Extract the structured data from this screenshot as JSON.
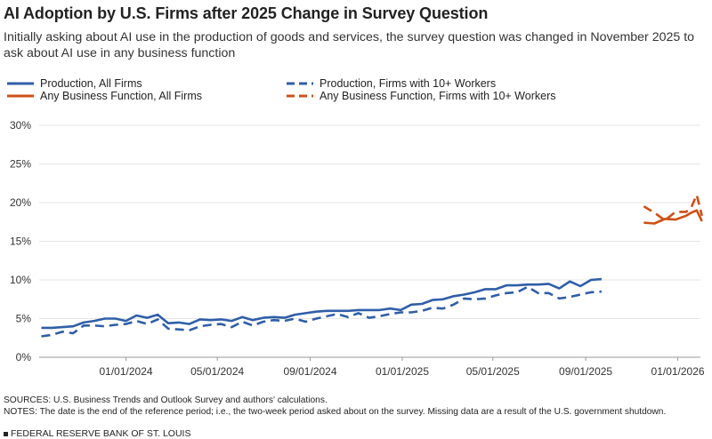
{
  "header": {
    "title": "AI Adoption by U.S. Firms after 2025 Change in Survey Question",
    "subtitle": "Initially asking about AI use in the production of goods and services, the survey question was changed in November 2025 to ask about AI use in any business function"
  },
  "legend": [
    {
      "label": "Production, All Firms",
      "color": "#2f5ea8",
      "dash": false
    },
    {
      "label": "Production, Firms with 10+ Workers",
      "color": "#2f5ea8",
      "dash": true
    },
    {
      "label": "Any Business Function, All Firms",
      "color": "#cf4f14",
      "dash": false
    },
    {
      "label": "Any Business Function, Firms with 10+ Workers",
      "color": "#cf4f14",
      "dash": true
    }
  ],
  "chart_data": {
    "type": "line",
    "title": "AI Adoption by U.S. Firms after 2025 Change in Survey Question",
    "xlabel": "",
    "ylabel": "",
    "x_ticks": [
      "01/01/2024",
      "05/01/2024",
      "09/01/2024",
      "01/01/2025",
      "05/01/2025",
      "09/01/2025",
      "01/01/2026"
    ],
    "y_ticks": [
      "0%",
      "5%",
      "10%",
      "15%",
      "20%",
      "25%",
      "30%"
    ],
    "ylim": [
      0,
      30
    ],
    "xlim": [
      "2023-09-08",
      "2026-01-31"
    ],
    "grid": "horizontal",
    "legend_position": "top",
    "series": [
      {
        "name": "Production, All Firms",
        "color": "#2f5ea8",
        "dash": false,
        "points": [
          [
            "2023-09-11",
            3.8
          ],
          [
            "2023-09-25",
            3.8
          ],
          [
            "2023-10-09",
            3.9
          ],
          [
            "2023-10-23",
            4.0
          ],
          [
            "2023-11-06",
            4.5
          ],
          [
            "2023-11-20",
            4.7
          ],
          [
            "2023-12-04",
            5.0
          ],
          [
            "2023-12-18",
            5.0
          ],
          [
            "2024-01-01",
            4.7
          ],
          [
            "2024-01-15",
            5.4
          ],
          [
            "2024-01-29",
            5.1
          ],
          [
            "2024-02-12",
            5.5
          ],
          [
            "2024-02-26",
            4.4
          ],
          [
            "2024-03-11",
            4.5
          ],
          [
            "2024-03-25",
            4.3
          ],
          [
            "2024-04-08",
            4.9
          ],
          [
            "2024-04-22",
            4.8
          ],
          [
            "2024-05-06",
            4.9
          ],
          [
            "2024-05-20",
            4.7
          ],
          [
            "2024-06-03",
            5.2
          ],
          [
            "2024-06-17",
            4.8
          ],
          [
            "2024-07-01",
            5.1
          ],
          [
            "2024-07-15",
            5.2
          ],
          [
            "2024-07-29",
            5.1
          ],
          [
            "2024-08-12",
            5.5
          ],
          [
            "2024-08-26",
            5.7
          ],
          [
            "2024-09-09",
            5.9
          ],
          [
            "2024-09-23",
            6.0
          ],
          [
            "2024-10-07",
            6.0
          ],
          [
            "2024-10-21",
            6.0
          ],
          [
            "2024-11-04",
            6.1
          ],
          [
            "2024-11-18",
            6.1
          ],
          [
            "2024-12-02",
            6.1
          ],
          [
            "2024-12-16",
            6.3
          ],
          [
            "2024-12-30",
            6.1
          ],
          [
            "2025-01-13",
            6.8
          ],
          [
            "2025-01-27",
            6.9
          ],
          [
            "2025-02-10",
            7.4
          ],
          [
            "2025-02-24",
            7.5
          ],
          [
            "2025-03-10",
            7.9
          ],
          [
            "2025-03-24",
            8.1
          ],
          [
            "2025-04-07",
            8.4
          ],
          [
            "2025-04-21",
            8.8
          ],
          [
            "2025-05-05",
            8.8
          ],
          [
            "2025-05-19",
            9.3
          ],
          [
            "2025-06-02",
            9.3
          ],
          [
            "2025-06-16",
            9.4
          ],
          [
            "2025-06-30",
            9.4
          ],
          [
            "2025-07-14",
            9.5
          ],
          [
            "2025-07-28",
            8.9
          ],
          [
            "2025-08-11",
            9.8
          ],
          [
            "2025-08-25",
            9.2
          ],
          [
            "2025-09-08",
            10.0
          ],
          [
            "2025-09-22",
            10.1
          ]
        ]
      },
      {
        "name": "Production, Firms with 10+ Workers",
        "color": "#2f5ea8",
        "dash": true,
        "points": [
          [
            "2023-09-11",
            2.7
          ],
          [
            "2023-09-25",
            2.9
          ],
          [
            "2023-10-09",
            3.3
          ],
          [
            "2023-10-23",
            3.1
          ],
          [
            "2023-11-06",
            4.1
          ],
          [
            "2023-11-20",
            4.1
          ],
          [
            "2023-12-04",
            4.0
          ],
          [
            "2023-12-18",
            4.2
          ],
          [
            "2024-01-01",
            4.3
          ],
          [
            "2024-01-15",
            4.7
          ],
          [
            "2024-01-29",
            4.3
          ],
          [
            "2024-02-12",
            4.9
          ],
          [
            "2024-02-26",
            3.7
          ],
          [
            "2024-03-11",
            3.6
          ],
          [
            "2024-03-25",
            3.5
          ],
          [
            "2024-04-08",
            4.0
          ],
          [
            "2024-04-22",
            4.2
          ],
          [
            "2024-05-06",
            4.3
          ],
          [
            "2024-05-20",
            3.9
          ],
          [
            "2024-06-03",
            4.6
          ],
          [
            "2024-06-17",
            4.1
          ],
          [
            "2024-07-01",
            4.6
          ],
          [
            "2024-07-15",
            4.8
          ],
          [
            "2024-07-29",
            4.7
          ],
          [
            "2024-08-12",
            5.0
          ],
          [
            "2024-08-26",
            4.6
          ],
          [
            "2024-09-09",
            5.0
          ],
          [
            "2024-09-23",
            5.3
          ],
          [
            "2024-10-07",
            5.6
          ],
          [
            "2024-10-21",
            5.2
          ],
          [
            "2024-11-04",
            5.7
          ],
          [
            "2024-11-18",
            5.1
          ],
          [
            "2024-12-02",
            5.3
          ],
          [
            "2024-12-16",
            5.6
          ],
          [
            "2024-12-30",
            5.8
          ],
          [
            "2025-01-13",
            5.8
          ],
          [
            "2025-01-27",
            6.0
          ],
          [
            "2025-02-10",
            6.4
          ],
          [
            "2025-02-24",
            6.3
          ],
          [
            "2025-03-10",
            6.8
          ],
          [
            "2025-03-24",
            7.6
          ],
          [
            "2025-04-07",
            7.5
          ],
          [
            "2025-04-21",
            7.6
          ],
          [
            "2025-05-05",
            8.0
          ],
          [
            "2025-05-19",
            8.3
          ],
          [
            "2025-06-02",
            8.4
          ],
          [
            "2025-06-16",
            9.1
          ],
          [
            "2025-06-30",
            8.3
          ],
          [
            "2025-07-14",
            8.3
          ],
          [
            "2025-07-28",
            7.6
          ],
          [
            "2025-08-11",
            7.8
          ],
          [
            "2025-08-25",
            8.1
          ],
          [
            "2025-09-08",
            8.4
          ],
          [
            "2025-09-22",
            8.5
          ]
        ]
      },
      {
        "name": "Any Business Function, All Firms",
        "color": "#cf4f14",
        "dash": false,
        "points": [
          [
            "2025-11-17",
            17.4
          ],
          [
            "2025-12-01",
            17.3
          ],
          [
            "2025-12-15",
            17.9
          ],
          [
            "2025-12-29",
            17.8
          ],
          [
            "2026-01-12",
            18.3
          ],
          [
            "2026-01-19",
            18.7
          ],
          [
            "2026-01-26",
            19.0
          ],
          [
            "2026-02-02",
            17.6
          ]
        ]
      },
      {
        "name": "Any Business Function, Firms with 10+ Workers",
        "color": "#cf4f14",
        "dash": true,
        "points": [
          [
            "2025-11-17",
            19.5
          ],
          [
            "2025-12-01",
            18.7
          ],
          [
            "2025-12-15",
            17.7
          ],
          [
            "2025-12-29",
            18.8
          ],
          [
            "2026-01-12",
            18.8
          ],
          [
            "2026-01-19",
            19.4
          ],
          [
            "2026-01-26",
            21.0
          ],
          [
            "2026-02-02",
            18.3
          ]
        ]
      }
    ]
  },
  "notes": {
    "sources": "SOURCES: U.S. Business Trends and Outlook Survey and authors' calculations.",
    "notes": "NOTES: The date is the end of the reference period; i.e., the two-week period asked about on the survey. Missing data are a result of the U.S. government shutdown."
  },
  "footer": {
    "brand": "FEDERAL RESERVE BANK OF ST. LOUIS"
  }
}
